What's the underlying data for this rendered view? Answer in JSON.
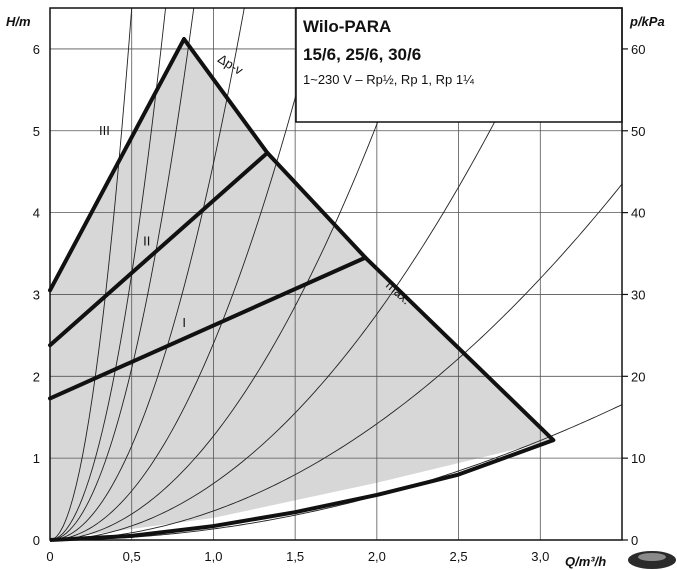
{
  "chart_data": {
    "type": "line",
    "title": "Wilo-PARA",
    "subtitle": "15/6, 25/6, 30/6",
    "note": "1~230 V – Rp½, Rp 1, Rp 1¼",
    "xlabel": "Q/m³/h",
    "ylabel_left": "H/m",
    "ylabel_right": "p/kPa",
    "xlim": [
      0,
      3.5
    ],
    "ylim_left": [
      0,
      6.5
    ],
    "ylim_right": [
      0,
      65
    ],
    "x_ticks": [
      "0",
      "0,5",
      "1,0",
      "1,5",
      "2,0",
      "2,5",
      "3,0"
    ],
    "y_left_ticks": [
      "0",
      "1",
      "2",
      "3",
      "4",
      "5",
      "6"
    ],
    "y_right_ticks": [
      "0",
      "10",
      "20",
      "30",
      "40",
      "50",
      "60"
    ],
    "grid": true,
    "envelope": {
      "x": [
        0,
        0.82,
        1.33,
        1.93,
        3.08,
        2.0,
        1.0,
        0
      ],
      "y": [
        3.05,
        6.12,
        4.73,
        3.45,
        1.22,
        0.7,
        0.27,
        0
      ]
    },
    "series": [
      {
        "name": "III",
        "x": [
          0,
          0.82
        ],
        "y": [
          3.05,
          6.12
        ]
      },
      {
        "name": "II",
        "x": [
          0,
          1.33
        ],
        "y": [
          2.38,
          4.73
        ]
      },
      {
        "name": "I",
        "x": [
          0,
          1.93
        ],
        "y": [
          1.73,
          3.45
        ]
      },
      {
        "name": "Δp-v",
        "x": [
          0.82,
          1.33
        ],
        "y": [
          6.12,
          4.73
        ]
      },
      {
        "name": "max.",
        "x": [
          1.33,
          1.93,
          3.08
        ],
        "y": [
          4.73,
          3.45,
          1.22
        ]
      }
    ],
    "bottom_curve": {
      "x": [
        0,
        0.5,
        1.0,
        1.5,
        2.0,
        2.5,
        3.08
      ],
      "y": [
        0,
        0.05,
        0.17,
        0.34,
        0.55,
        0.8,
        1.22
      ]
    },
    "system_curves_k": [
      26,
      13,
      8.4,
      4.6,
      2.4,
      1.27,
      0.69,
      0.355,
      0.135
    ]
  }
}
